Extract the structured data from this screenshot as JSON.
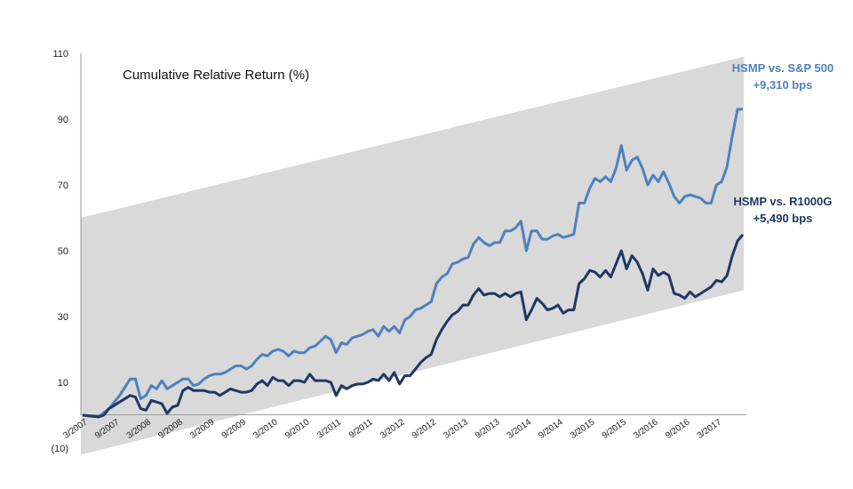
{
  "chart_data": {
    "type": "line",
    "title": "Cumulative Relative Return (%)",
    "ylim": [
      -10,
      110
    ],
    "y_ticks": [
      "(10)",
      "10",
      "30",
      "50",
      "70",
      "90",
      "110"
    ],
    "x_ticks": [
      "3/2007",
      "9/2007",
      "3/2008",
      "9/2008",
      "3/2009",
      "9/2009",
      "3/2010",
      "9/2010",
      "3/2011",
      "9/2011",
      "3/2012",
      "9/2012",
      "3/2013",
      "9/2013",
      "3/2014",
      "9/2014",
      "3/2015",
      "9/2015",
      "3/2016",
      "9/2016",
      "3/2017"
    ],
    "grid": false,
    "band": {
      "color": "#d9d9d9",
      "upper": [
        {
          "x": 2007.167,
          "y": 60
        },
        {
          "x": 2017.6,
          "y": 109
        }
      ],
      "lower": [
        {
          "x": 2007.167,
          "y": -12
        },
        {
          "x": 2017.6,
          "y": 38
        }
      ]
    },
    "series": [
      {
        "name": "HSMP vs. S&P 500",
        "color": "#4f81bd",
        "label_lines": [
          "HSMP vs. S&P 500",
          "+9,310 bps"
        ],
        "points": [
          [
            2007.167,
            0
          ],
          [
            2007.417,
            -0.5
          ],
          [
            2007.583,
            2
          ],
          [
            2007.75,
            6
          ],
          [
            2007.917,
            11
          ],
          [
            2008.0,
            11
          ],
          [
            2008.083,
            5
          ],
          [
            2008.167,
            6
          ],
          [
            2008.25,
            9
          ],
          [
            2008.333,
            8
          ],
          [
            2008.417,
            10.5
          ],
          [
            2008.5,
            8
          ],
          [
            2008.583,
            9
          ],
          [
            2008.667,
            10
          ],
          [
            2008.75,
            11
          ],
          [
            2008.833,
            11
          ],
          [
            2008.917,
            9
          ],
          [
            2009.0,
            9.5
          ],
          [
            2009.083,
            11
          ],
          [
            2009.167,
            12
          ],
          [
            2009.25,
            12.5
          ],
          [
            2009.333,
            12.5
          ],
          [
            2009.417,
            13
          ],
          [
            2009.5,
            14
          ],
          [
            2009.583,
            15
          ],
          [
            2009.667,
            15
          ],
          [
            2009.75,
            14
          ],
          [
            2009.833,
            15
          ],
          [
            2009.917,
            17
          ],
          [
            2010.0,
            18.5
          ],
          [
            2010.083,
            18
          ],
          [
            2010.167,
            19.5
          ],
          [
            2010.25,
            20
          ],
          [
            2010.333,
            19.5
          ],
          [
            2010.417,
            18
          ],
          [
            2010.5,
            19.5
          ],
          [
            2010.583,
            19
          ],
          [
            2010.667,
            19
          ],
          [
            2010.75,
            20.5
          ],
          [
            2010.833,
            21
          ],
          [
            2010.917,
            22.5
          ],
          [
            2011.0,
            24
          ],
          [
            2011.083,
            23
          ],
          [
            2011.167,
            19
          ],
          [
            2011.25,
            22
          ],
          [
            2011.333,
            21.5
          ],
          [
            2011.417,
            23.5
          ],
          [
            2011.5,
            24
          ],
          [
            2011.583,
            24.5
          ],
          [
            2011.667,
            25.5
          ],
          [
            2011.75,
            26
          ],
          [
            2011.833,
            24
          ],
          [
            2011.917,
            27
          ],
          [
            2012.0,
            25.5
          ],
          [
            2012.083,
            27
          ],
          [
            2012.167,
            25
          ],
          [
            2012.25,
            29
          ],
          [
            2012.333,
            30
          ],
          [
            2012.417,
            32
          ],
          [
            2012.5,
            32.5
          ],
          [
            2012.583,
            33.5
          ],
          [
            2012.667,
            34.5
          ],
          [
            2012.75,
            40
          ],
          [
            2012.833,
            42
          ],
          [
            2012.917,
            43
          ],
          [
            2013.0,
            46
          ],
          [
            2013.083,
            46.5
          ],
          [
            2013.167,
            47.5
          ],
          [
            2013.25,
            48
          ],
          [
            2013.333,
            52
          ],
          [
            2013.417,
            54
          ],
          [
            2013.5,
            52.5
          ],
          [
            2013.583,
            51.5
          ],
          [
            2013.667,
            52.5
          ],
          [
            2013.75,
            52.5
          ],
          [
            2013.833,
            56
          ],
          [
            2013.917,
            56
          ],
          [
            2014.0,
            57
          ],
          [
            2014.083,
            59
          ],
          [
            2014.167,
            50
          ],
          [
            2014.25,
            56
          ],
          [
            2014.333,
            56
          ],
          [
            2014.417,
            53.5
          ],
          [
            2014.5,
            53.5
          ],
          [
            2014.583,
            54.5
          ],
          [
            2014.667,
            55
          ],
          [
            2014.75,
            54
          ],
          [
            2014.833,
            54.5
          ],
          [
            2014.917,
            55
          ],
          [
            2015.0,
            64.5
          ],
          [
            2015.083,
            64.5
          ],
          [
            2015.167,
            69
          ],
          [
            2015.25,
            72
          ],
          [
            2015.333,
            71
          ],
          [
            2015.417,
            72.5
          ],
          [
            2015.5,
            71
          ],
          [
            2015.583,
            75
          ],
          [
            2015.667,
            82
          ],
          [
            2015.75,
            74.5
          ],
          [
            2015.833,
            77.5
          ],
          [
            2015.917,
            78.5
          ],
          [
            2016.0,
            75
          ],
          [
            2016.083,
            70
          ],
          [
            2016.167,
            73
          ],
          [
            2016.25,
            71
          ],
          [
            2016.333,
            74
          ],
          [
            2016.417,
            70.5
          ],
          [
            2016.5,
            66.5
          ],
          [
            2016.583,
            64.5
          ],
          [
            2016.667,
            66.5
          ],
          [
            2016.75,
            67
          ],
          [
            2016.833,
            66.5
          ],
          [
            2016.917,
            66
          ],
          [
            2017.0,
            64.5
          ],
          [
            2017.083,
            64.5
          ],
          [
            2017.167,
            70
          ],
          [
            2017.25,
            71
          ],
          [
            2017.333,
            75.5
          ],
          [
            2017.417,
            85
          ],
          [
            2017.5,
            93
          ],
          [
            2017.583,
            93
          ]
        ]
      },
      {
        "name": "HSMP vs. R1000G",
        "color": "#1f3864",
        "label_lines": [
          "HSMP vs. R1000G",
          "+5,490 bps"
        ],
        "points": [
          [
            2007.167,
            0
          ],
          [
            2007.417,
            -0.5
          ],
          [
            2007.5,
            0
          ],
          [
            2007.583,
            2
          ],
          [
            2007.75,
            4
          ],
          [
            2007.917,
            6
          ],
          [
            2008.0,
            5.5
          ],
          [
            2008.083,
            2
          ],
          [
            2008.167,
            1.5
          ],
          [
            2008.25,
            4.5
          ],
          [
            2008.333,
            4
          ],
          [
            2008.417,
            3.5
          ],
          [
            2008.5,
            0.5
          ],
          [
            2008.583,
            2.5
          ],
          [
            2008.667,
            3
          ],
          [
            2008.75,
            7.5
          ],
          [
            2008.833,
            8.5
          ],
          [
            2008.917,
            7.5
          ],
          [
            2009.0,
            7.5
          ],
          [
            2009.083,
            7.5
          ],
          [
            2009.167,
            7
          ],
          [
            2009.25,
            7
          ],
          [
            2009.333,
            6
          ],
          [
            2009.417,
            7
          ],
          [
            2009.5,
            8
          ],
          [
            2009.583,
            7.5
          ],
          [
            2009.667,
            7
          ],
          [
            2009.75,
            7
          ],
          [
            2009.833,
            7.5
          ],
          [
            2009.917,
            9.5
          ],
          [
            2010.0,
            10.5
          ],
          [
            2010.083,
            9
          ],
          [
            2010.167,
            11.5
          ],
          [
            2010.25,
            10.5
          ],
          [
            2010.333,
            10.5
          ],
          [
            2010.417,
            9
          ],
          [
            2010.5,
            10.5
          ],
          [
            2010.583,
            10.5
          ],
          [
            2010.667,
            10
          ],
          [
            2010.75,
            12.5
          ],
          [
            2010.833,
            10.5
          ],
          [
            2010.917,
            10.5
          ],
          [
            2011.0,
            10.5
          ],
          [
            2011.083,
            10
          ],
          [
            2011.167,
            6
          ],
          [
            2011.25,
            9
          ],
          [
            2011.333,
            8
          ],
          [
            2011.417,
            9
          ],
          [
            2011.5,
            9.5
          ],
          [
            2011.583,
            9.5
          ],
          [
            2011.667,
            10
          ],
          [
            2011.75,
            11
          ],
          [
            2011.833,
            10.5
          ],
          [
            2011.917,
            12.5
          ],
          [
            2012.0,
            10.5
          ],
          [
            2012.083,
            13
          ],
          [
            2012.167,
            9.5
          ],
          [
            2012.25,
            12
          ],
          [
            2012.333,
            12
          ],
          [
            2012.417,
            14
          ],
          [
            2012.5,
            16
          ],
          [
            2012.583,
            17.5
          ],
          [
            2012.667,
            18.5
          ],
          [
            2012.75,
            23
          ],
          [
            2012.833,
            26
          ],
          [
            2012.917,
            28.5
          ],
          [
            2013.0,
            30.5
          ],
          [
            2013.083,
            31.5
          ],
          [
            2013.167,
            33.5
          ],
          [
            2013.25,
            33.5
          ],
          [
            2013.333,
            36.5
          ],
          [
            2013.417,
            38.5
          ],
          [
            2013.5,
            36.5
          ],
          [
            2013.583,
            37
          ],
          [
            2013.667,
            37
          ],
          [
            2013.75,
            36
          ],
          [
            2013.833,
            37
          ],
          [
            2013.917,
            36
          ],
          [
            2014.0,
            37
          ],
          [
            2014.083,
            37.5
          ],
          [
            2014.167,
            29
          ],
          [
            2014.25,
            32
          ],
          [
            2014.333,
            35.5
          ],
          [
            2014.417,
            34
          ],
          [
            2014.5,
            32
          ],
          [
            2014.583,
            32.5
          ],
          [
            2014.667,
            33.5
          ],
          [
            2014.75,
            31
          ],
          [
            2014.833,
            32
          ],
          [
            2014.917,
            32
          ],
          [
            2015.0,
            40
          ],
          [
            2015.083,
            41.5
          ],
          [
            2015.167,
            44
          ],
          [
            2015.25,
            43.5
          ],
          [
            2015.333,
            42
          ],
          [
            2015.417,
            44
          ],
          [
            2015.5,
            42
          ],
          [
            2015.583,
            46
          ],
          [
            2015.667,
            50
          ],
          [
            2015.75,
            44.5
          ],
          [
            2015.833,
            48.5
          ],
          [
            2015.917,
            46.5
          ],
          [
            2016.0,
            43
          ],
          [
            2016.083,
            38
          ],
          [
            2016.167,
            44.5
          ],
          [
            2016.25,
            42.5
          ],
          [
            2016.333,
            43.5
          ],
          [
            2016.417,
            42.5
          ],
          [
            2016.5,
            37
          ],
          [
            2016.583,
            36.5
          ],
          [
            2016.667,
            35.5
          ],
          [
            2016.75,
            37.5
          ],
          [
            2016.833,
            36
          ],
          [
            2016.917,
            37
          ],
          [
            2017.0,
            38
          ],
          [
            2017.083,
            39
          ],
          [
            2017.167,
            41
          ],
          [
            2017.25,
            40.5
          ],
          [
            2017.333,
            42.5
          ],
          [
            2017.417,
            48.5
          ],
          [
            2017.5,
            53
          ],
          [
            2017.583,
            54.9
          ]
        ]
      }
    ]
  }
}
